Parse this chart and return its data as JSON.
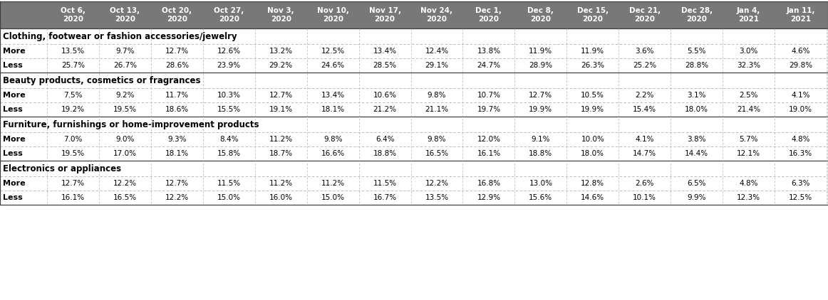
{
  "columns": [
    "Oct 6,\n2020",
    "Oct 13,\n2020",
    "Oct 20,\n2020",
    "Oct 27,\n2020",
    "Nov 3,\n2020",
    "Nov 10,\n2020",
    "Nov 17,\n2020",
    "Nov 24,\n2020",
    "Dec 1,\n2020",
    "Dec 8,\n2020",
    "Dec 15,\n2020",
    "Dec 21,\n2020",
    "Dec 28,\n2020",
    "Jan 4,\n2021",
    "Jan 11,\n2021"
  ],
  "header_bg": "#787878",
  "header_fg": "#ffffff",
  "category_fg": "#000000",
  "row_label_fg": "#000000",
  "data_fg": "#000000",
  "categories": [
    {
      "name": "Clothing, footwear or fashion accessories/jewelry",
      "more": [
        "13.5%",
        "9.7%",
        "12.7%",
        "12.6%",
        "13.2%",
        "12.5%",
        "13.4%",
        "12.4%",
        "13.8%",
        "11.9%",
        "11.9%",
        "3.6%",
        "5.5%",
        "3.0%",
        "4.6%"
      ],
      "less": [
        "25.7%",
        "26.7%",
        "28.6%",
        "23.9%",
        "29.2%",
        "24.6%",
        "28.5%",
        "29.1%",
        "24.7%",
        "28.9%",
        "26.3%",
        "25.2%",
        "28.8%",
        "32.3%",
        "29.8%"
      ]
    },
    {
      "name": "Beauty products, cosmetics or fragrances",
      "more": [
        "7.5%",
        "9.2%",
        "11.7%",
        "10.3%",
        "12.7%",
        "13.4%",
        "10.6%",
        "9.8%",
        "10.7%",
        "12.7%",
        "10.5%",
        "2.2%",
        "3.1%",
        "2.5%",
        "4.1%"
      ],
      "less": [
        "19.2%",
        "19.5%",
        "18.6%",
        "15.5%",
        "19.1%",
        "18.1%",
        "21.2%",
        "21.1%",
        "19.7%",
        "19.9%",
        "19.9%",
        "15.4%",
        "18.0%",
        "21.4%",
        "19.0%"
      ]
    },
    {
      "name": "Furniture, furnishings or home-improvement products",
      "more": [
        "7.0%",
        "9.0%",
        "9.3%",
        "8.4%",
        "11.2%",
        "9.8%",
        "6.4%",
        "9.8%",
        "12.0%",
        "9.1%",
        "10.0%",
        "4.1%",
        "3.8%",
        "5.7%",
        "4.8%"
      ],
      "less": [
        "19.5%",
        "17.0%",
        "18.1%",
        "15.8%",
        "18.7%",
        "16.6%",
        "18.8%",
        "16.5%",
        "16.1%",
        "18.8%",
        "18.0%",
        "14.7%",
        "14.4%",
        "12.1%",
        "16.3%"
      ]
    },
    {
      "name": "Electronics or appliances",
      "more": [
        "12.7%",
        "12.2%",
        "12.7%",
        "11.5%",
        "11.2%",
        "11.2%",
        "11.5%",
        "12.2%",
        "16.8%",
        "13.0%",
        "12.8%",
        "2.6%",
        "6.5%",
        "4.8%",
        "6.3%"
      ],
      "less": [
        "16.1%",
        "16.5%",
        "12.2%",
        "15.0%",
        "16.0%",
        "15.0%",
        "16.7%",
        "13.5%",
        "12.9%",
        "15.6%",
        "14.6%",
        "10.1%",
        "9.9%",
        "12.3%",
        "12.5%"
      ]
    }
  ],
  "fig_width": 11.62,
  "fig_height": 4.22,
  "dpi": 100
}
